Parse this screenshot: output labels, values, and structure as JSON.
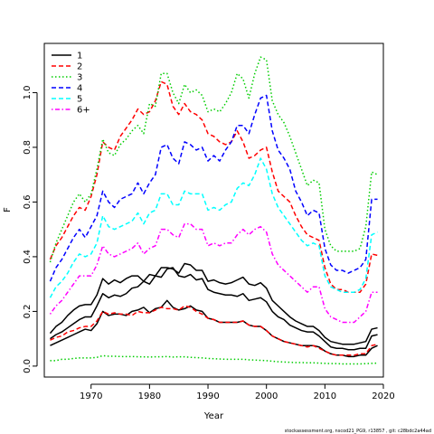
{
  "footer": "stockassessment.org, nscod21_PG9, r13857 , git: c28bdc2a44ad",
  "chart_data": {
    "type": "line",
    "xlabel": "Year",
    "ylabel": "F",
    "xlim": [
      1962,
      2020
    ],
    "ylim": [
      -0.04,
      1.18
    ],
    "xticks": [
      1970,
      1980,
      1990,
      2000,
      2010,
      2020
    ],
    "yticks": [
      0.0,
      0.2,
      0.4,
      0.6,
      0.8,
      1.0
    ],
    "ytick_labels": [
      "0.0",
      "0.2",
      "0.4",
      "0.6",
      "0.8",
      "1.0"
    ],
    "legend_position": "top-left",
    "grid": false,
    "x": [
      1963,
      1964,
      1965,
      1966,
      1967,
      1968,
      1969,
      1970,
      1971,
      1972,
      1973,
      1974,
      1975,
      1976,
      1977,
      1978,
      1979,
      1980,
      1981,
      1982,
      1983,
      1984,
      1985,
      1986,
      1987,
      1988,
      1989,
      1990,
      1991,
      1992,
      1993,
      1994,
      1995,
      1996,
      1997,
      1998,
      1999,
      2000,
      2001,
      2002,
      2003,
      2004,
      2005,
      2006,
      2007,
      2008,
      2009,
      2010,
      2011,
      2012,
      2013,
      2014,
      2015,
      2016,
      2017,
      2018,
      2019
    ],
    "series": [
      {
        "name": "1",
        "color": "#000000",
        "dash": "solid",
        "mid": [
          0.1,
          0.115,
          0.125,
          0.14,
          0.155,
          0.17,
          0.18,
          0.18,
          0.22,
          0.265,
          0.25,
          0.26,
          0.255,
          0.265,
          0.285,
          0.29,
          0.31,
          0.3,
          0.33,
          0.325,
          0.355,
          0.36,
          0.33,
          0.325,
          0.335,
          0.315,
          0.32,
          0.28,
          0.27,
          0.265,
          0.26,
          0.26,
          0.255,
          0.265,
          0.24,
          0.245,
          0.25,
          0.235,
          0.2,
          0.18,
          0.17,
          0.15,
          0.14,
          0.13,
          0.125,
          0.125,
          0.11,
          0.09,
          0.07,
          0.065,
          0.065,
          0.06,
          0.06,
          0.065,
          0.065,
          0.11,
          0.115
        ],
        "lower": [
          0.075,
          0.085,
          0.095,
          0.105,
          0.115,
          0.125,
          0.135,
          0.13,
          0.155,
          0.2,
          0.185,
          0.19,
          0.19,
          0.185,
          0.2,
          0.205,
          0.215,
          0.195,
          0.21,
          0.215,
          0.24,
          0.215,
          0.205,
          0.21,
          0.22,
          0.205,
          0.2,
          0.175,
          0.17,
          0.16,
          0.16,
          0.16,
          0.16,
          0.165,
          0.15,
          0.145,
          0.145,
          0.13,
          0.11,
          0.1,
          0.09,
          0.085,
          0.08,
          0.075,
          0.075,
          0.075,
          0.07,
          0.055,
          0.045,
          0.04,
          0.04,
          0.035,
          0.035,
          0.04,
          0.04,
          0.065,
          0.075
        ],
        "upper": [
          0.12,
          0.145,
          0.16,
          0.185,
          0.205,
          0.22,
          0.225,
          0.225,
          0.26,
          0.32,
          0.3,
          0.315,
          0.305,
          0.32,
          0.33,
          0.33,
          0.31,
          0.335,
          0.33,
          0.36,
          0.36,
          0.355,
          0.34,
          0.375,
          0.37,
          0.35,
          0.35,
          0.31,
          0.315,
          0.305,
          0.3,
          0.305,
          0.315,
          0.325,
          0.3,
          0.295,
          0.305,
          0.285,
          0.24,
          0.22,
          0.2,
          0.18,
          0.165,
          0.155,
          0.145,
          0.145,
          0.13,
          0.105,
          0.09,
          0.085,
          0.08,
          0.08,
          0.08,
          0.085,
          0.09,
          0.135,
          0.14
        ]
      },
      {
        "name": "2",
        "color": "#ff0000",
        "dash": "dashed",
        "mid": [
          0.39,
          0.44,
          0.47,
          0.51,
          0.55,
          0.58,
          0.57,
          0.62,
          0.7,
          0.82,
          0.8,
          0.79,
          0.84,
          0.87,
          0.9,
          0.94,
          0.92,
          0.93,
          0.97,
          1.04,
          1.03,
          0.95,
          0.92,
          0.96,
          0.93,
          0.92,
          0.9,
          0.85,
          0.84,
          0.82,
          0.81,
          0.82,
          0.86,
          0.82,
          0.76,
          0.77,
          0.79,
          0.8,
          0.71,
          0.64,
          0.62,
          0.6,
          0.55,
          0.51,
          0.48,
          0.47,
          0.46,
          0.36,
          0.3,
          0.28,
          0.28,
          0.27,
          0.27,
          0.27,
          0.3,
          0.41,
          0.405
        ],
        "lower": [
          0.095,
          0.105,
          0.11,
          0.125,
          0.13,
          0.14,
          0.145,
          0.145,
          0.165,
          0.2,
          0.19,
          0.195,
          0.19,
          0.19,
          0.185,
          0.2,
          0.195,
          0.195,
          0.205,
          0.215,
          0.21,
          0.21,
          0.205,
          0.22,
          0.215,
          0.2,
          0.19,
          0.175,
          0.17,
          0.16,
          0.16,
          0.16,
          0.16,
          0.165,
          0.15,
          0.145,
          0.145,
          0.13,
          0.11,
          0.1,
          0.09,
          0.085,
          0.08,
          0.075,
          0.07,
          0.075,
          0.065,
          0.055,
          0.045,
          0.04,
          0.04,
          0.04,
          0.04,
          0.045,
          0.045,
          0.075,
          0.08
        ]
      },
      {
        "name": "3",
        "color": "#00cd00",
        "dash": "dotted",
        "upper": [
          0.38,
          0.45,
          0.5,
          0.55,
          0.6,
          0.63,
          0.6,
          0.63,
          0.72,
          0.83,
          0.78,
          0.77,
          0.81,
          0.83,
          0.86,
          0.88,
          0.85,
          0.96,
          0.95,
          1.07,
          1.07,
          1.0,
          0.96,
          1.03,
          1.0,
          1.01,
          0.99,
          0.93,
          0.94,
          0.93,
          0.96,
          1.0,
          1.07,
          1.05,
          0.98,
          1.07,
          1.13,
          1.12,
          0.97,
          0.92,
          0.89,
          0.84,
          0.78,
          0.72,
          0.66,
          0.68,
          0.67,
          0.5,
          0.44,
          0.42,
          0.42,
          0.42,
          0.42,
          0.43,
          0.51,
          0.71,
          0.7
        ],
        "lower": [
          0.02,
          0.02,
          0.025,
          0.025,
          0.028,
          0.03,
          0.03,
          0.03,
          0.032,
          0.038,
          0.036,
          0.036,
          0.035,
          0.035,
          0.035,
          0.034,
          0.034,
          0.033,
          0.034,
          0.034,
          0.035,
          0.033,
          0.034,
          0.034,
          0.032,
          0.031,
          0.03,
          0.028,
          0.027,
          0.026,
          0.025,
          0.025,
          0.025,
          0.025,
          0.023,
          0.022,
          0.021,
          0.02,
          0.018,
          0.016,
          0.015,
          0.014,
          0.013,
          0.013,
          0.012,
          0.012,
          0.011,
          0.01,
          0.009,
          0.009,
          0.008,
          0.008,
          0.008,
          0.008,
          0.009,
          0.01,
          0.011
        ]
      },
      {
        "name": "4",
        "color": "#0000ff",
        "dash": "dashed",
        "mid": [
          0.31,
          0.36,
          0.39,
          0.43,
          0.47,
          0.5,
          0.47,
          0.51,
          0.55,
          0.64,
          0.6,
          0.58,
          0.61,
          0.62,
          0.63,
          0.67,
          0.63,
          0.67,
          0.7,
          0.8,
          0.81,
          0.76,
          0.74,
          0.82,
          0.81,
          0.79,
          0.8,
          0.75,
          0.77,
          0.75,
          0.79,
          0.82,
          0.88,
          0.88,
          0.85,
          0.92,
          0.98,
          0.99,
          0.86,
          0.79,
          0.76,
          0.72,
          0.64,
          0.6,
          0.55,
          0.57,
          0.56,
          0.43,
          0.37,
          0.35,
          0.35,
          0.34,
          0.35,
          0.36,
          0.39,
          0.61,
          0.61
        ]
      },
      {
        "name": "5",
        "color": "#00ffff",
        "dash": "dashed",
        "mid": [
          0.25,
          0.29,
          0.31,
          0.34,
          0.38,
          0.41,
          0.4,
          0.41,
          0.45,
          0.55,
          0.51,
          0.5,
          0.51,
          0.52,
          0.53,
          0.56,
          0.52,
          0.56,
          0.57,
          0.63,
          0.63,
          0.59,
          0.59,
          0.64,
          0.63,
          0.63,
          0.63,
          0.57,
          0.58,
          0.57,
          0.59,
          0.6,
          0.65,
          0.67,
          0.66,
          0.7,
          0.76,
          0.72,
          0.63,
          0.58,
          0.55,
          0.52,
          0.49,
          0.46,
          0.44,
          0.45,
          0.44,
          0.33,
          0.29,
          0.28,
          0.27,
          0.27,
          0.27,
          0.28,
          0.32,
          0.48,
          0.49
        ]
      },
      {
        "name": "6+",
        "color": "#ff00ff",
        "dash": "dashdot",
        "mid": [
          0.19,
          0.22,
          0.24,
          0.27,
          0.3,
          0.33,
          0.33,
          0.33,
          0.37,
          0.44,
          0.41,
          0.4,
          0.41,
          0.42,
          0.43,
          0.45,
          0.41,
          0.43,
          0.44,
          0.5,
          0.5,
          0.48,
          0.47,
          0.52,
          0.52,
          0.5,
          0.5,
          0.44,
          0.45,
          0.44,
          0.45,
          0.45,
          0.48,
          0.5,
          0.48,
          0.5,
          0.51,
          0.49,
          0.41,
          0.37,
          0.35,
          0.33,
          0.31,
          0.29,
          0.27,
          0.29,
          0.29,
          0.21,
          0.18,
          0.17,
          0.16,
          0.16,
          0.16,
          0.18,
          0.2,
          0.27,
          0.27
        ]
      }
    ]
  }
}
